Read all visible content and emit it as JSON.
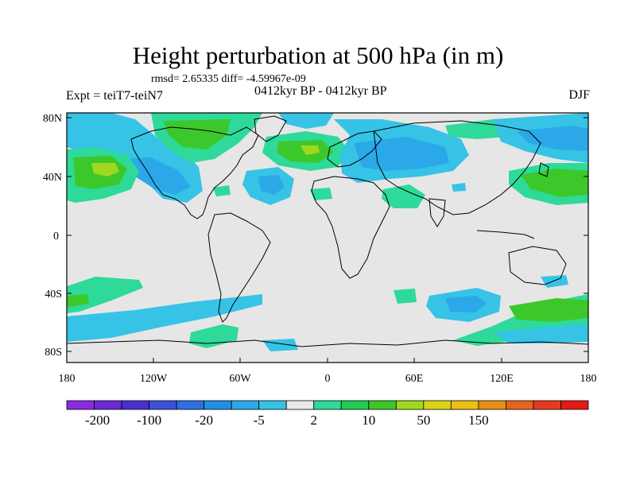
{
  "title": "Height perturbation at 500 hPa (in m)",
  "stats": "rmsd= 2.65335 diff= -4.59967e-09",
  "left_label": "Expt = teiT7-teiN7",
  "center_label": "0412kyr BP - 0412kyr BP",
  "right_label": "DJF",
  "lat_ticks": [
    "80N",
    "40N",
    "0",
    "40S",
    "80S"
  ],
  "lon_ticks": [
    "180",
    "120W",
    "60W",
    "0",
    "60E",
    "120E",
    "180"
  ],
  "colorbar": {
    "colors": [
      "#8a2be2",
      "#6a2ad8",
      "#4b2ed0",
      "#3a52da",
      "#2d6fe0",
      "#1e90e6",
      "#2aa8e8",
      "#36c3e6",
      "#e8e8e8",
      "#2ed99a",
      "#22cc55",
      "#3cc82a",
      "#a0d820",
      "#d8d418",
      "#ecbf14",
      "#e6901a",
      "#e66420",
      "#e63a20",
      "#e61a14"
    ],
    "labels": [
      "-200",
      "-100",
      "-20",
      "-5",
      "2",
      "10",
      "50",
      "150"
    ]
  },
  "colors": {
    "ocean_land": "#e6e6e6",
    "blue_light": "#36c3e6",
    "blue_mid": "#2aa8e8",
    "green_light": "#2ed99a",
    "green_mid": "#3cc82a",
    "yellow": "#a0d820"
  }
}
